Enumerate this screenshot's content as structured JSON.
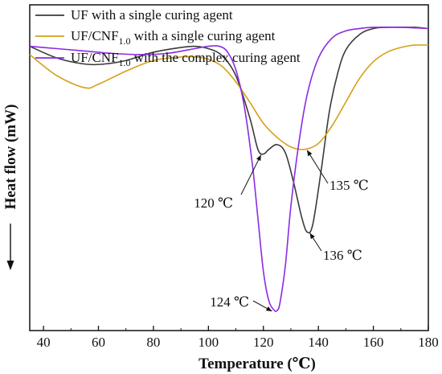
{
  "chart_data": {
    "type": "line",
    "title": "",
    "xlabel": "Temperature (℃)",
    "ylabel": "Heat flow (mW)",
    "xlim": [
      35,
      180
    ],
    "x_ticks": [
      40,
      60,
      80,
      100,
      120,
      140,
      160,
      180
    ],
    "y_ticks_shown": false,
    "y_direction_arrow": "down",
    "legend_placement": "top-left",
    "grid": false,
    "series": [
      {
        "name": "UF with a single curing agent",
        "color": "#3a3a3a",
        "x": [
          35,
          45,
          55,
          62,
          70,
          80,
          90,
          95,
          100,
          105,
          110,
          115,
          118,
          120,
          122,
          125,
          128,
          131,
          134,
          136,
          138,
          141,
          144,
          147,
          150,
          155,
          160,
          165,
          170,
          175,
          180
        ],
        "y": [
          0.05,
          -0.05,
          -0.1,
          -0.1,
          -0.07,
          0.0,
          0.04,
          0.05,
          0.03,
          -0.03,
          -0.2,
          -0.55,
          -0.82,
          -0.86,
          -0.82,
          -0.78,
          -0.85,
          -1.1,
          -1.4,
          -1.52,
          -1.45,
          -1.0,
          -0.5,
          -0.18,
          0.02,
          0.15,
          0.2,
          0.21,
          0.21,
          0.21,
          0.2
        ]
      },
      {
        "name": "UF/CNF1.0 with a single curing agent",
        "color": "#d4a017",
        "x": [
          35,
          45,
          55,
          60,
          70,
          80,
          90,
          95,
          100,
          105,
          110,
          115,
          120,
          125,
          130,
          135,
          140,
          145,
          150,
          155,
          160,
          165,
          170,
          175,
          180
        ],
        "y": [
          -0.02,
          -0.2,
          -0.3,
          -0.27,
          -0.16,
          -0.07,
          -0.04,
          -0.04,
          -0.06,
          -0.12,
          -0.25,
          -0.42,
          -0.6,
          -0.72,
          -0.8,
          -0.82,
          -0.77,
          -0.62,
          -0.42,
          -0.22,
          -0.08,
          0.0,
          0.04,
          0.06,
          0.06
        ]
      },
      {
        "name": "UF/CNF1.0 with the complex curing agent",
        "color": "#8b2be2",
        "x": [
          35,
          45,
          55,
          65,
          75,
          85,
          95,
          100,
          104,
          107,
          110,
          113,
          116,
          118,
          120,
          122,
          124,
          125,
          126,
          128,
          130,
          133,
          136,
          140,
          145,
          150,
          155,
          160,
          165,
          170,
          180
        ],
        "y": [
          0.05,
          0.03,
          0.01,
          -0.01,
          -0.02,
          -0.01,
          0.03,
          0.05,
          0.05,
          0.0,
          -0.15,
          -0.45,
          -0.95,
          -1.4,
          -1.85,
          -2.1,
          -2.18,
          -2.18,
          -2.12,
          -1.8,
          -1.3,
          -0.75,
          -0.35,
          -0.05,
          0.12,
          0.18,
          0.2,
          0.21,
          0.21,
          0.21,
          0.2
        ]
      }
    ],
    "annotations": [
      {
        "label": "120 ℃",
        "series": 0,
        "x": 120,
        "y": -0.86,
        "side": "left"
      },
      {
        "label": "136 ℃",
        "series": 0,
        "x": 136,
        "y": -1.52,
        "side": "right"
      },
      {
        "label": "124 ℃",
        "series": 2,
        "x": 124,
        "y": -2.18,
        "side": "left"
      },
      {
        "label": "135 ℃",
        "series": 1,
        "x": 135,
        "y": -0.82,
        "side": "right"
      }
    ]
  }
}
